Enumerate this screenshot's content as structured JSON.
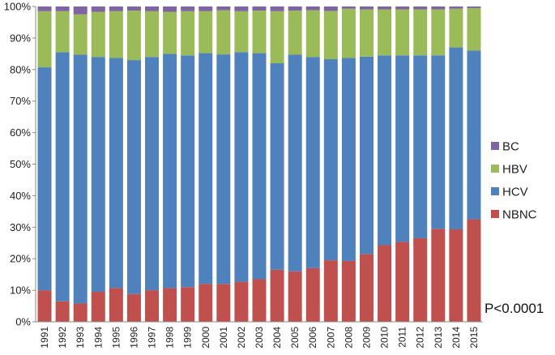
{
  "chart_data": {
    "type": "bar",
    "stacked": true,
    "normalized": true,
    "categories": [
      "1991",
      "1992",
      "1993",
      "1994",
      "1995",
      "1996",
      "1997",
      "1998",
      "1999",
      "2000",
      "2001",
      "2002",
      "2003",
      "2004",
      "2005",
      "2006",
      "2007",
      "2008",
      "2009",
      "2010",
      "2011",
      "2012",
      "2013",
      "2014",
      "2015"
    ],
    "series": [
      {
        "name": "NBNC",
        "color": "#c0504d",
        "values": [
          10,
          6.5,
          5.8,
          9.5,
          10.7,
          8.8,
          10,
          10.7,
          11,
          12,
          12,
          12.7,
          13.5,
          16.5,
          16,
          17,
          19.5,
          19.3,
          21.5,
          24.3,
          25.3,
          26.5,
          29.5,
          29.3,
          32.5
        ]
      },
      {
        "name": "HCV",
        "color": "#4f81bd",
        "values": [
          70.7,
          79,
          78.9,
          74.5,
          73,
          74.2,
          74,
          74.3,
          73.5,
          73.2,
          72.8,
          72.8,
          71.7,
          65.5,
          68.7,
          67,
          63.8,
          64.4,
          62.6,
          60.2,
          59.2,
          58,
          55,
          57.7,
          53.5
        ]
      },
      {
        "name": "HBV",
        "color": "#9bbb59",
        "values": [
          17.8,
          13,
          12.8,
          14.3,
          14.8,
          15.7,
          14.5,
          13.3,
          14,
          13.3,
          14,
          13,
          13.5,
          16.5,
          14,
          14.8,
          15.3,
          15.6,
          15,
          14.6,
          14.6,
          14.6,
          14.6,
          12.3,
          13.5
        ]
      },
      {
        "name": "BC",
        "color": "#8064a2",
        "values": [
          1.5,
          1.5,
          2.5,
          1.7,
          1.5,
          1.3,
          1.5,
          1.7,
          1.5,
          1.5,
          1.2,
          1.5,
          1.3,
          1.5,
          1.3,
          1.2,
          1.4,
          0.7,
          0.9,
          0.9,
          0.9,
          0.9,
          0.9,
          0.7,
          0.5
        ]
      }
    ],
    "ylim": [
      0,
      100
    ],
    "yticks": [
      "0%",
      "10%",
      "20%",
      "30%",
      "40%",
      "50%",
      "60%",
      "70%",
      "80%",
      "90%",
      "100%"
    ],
    "legend": {
      "placement": "right",
      "order": [
        "BC",
        "HBV",
        "HCV",
        "NBNC"
      ]
    },
    "annotation": "P<0.0001",
    "grid": false
  }
}
